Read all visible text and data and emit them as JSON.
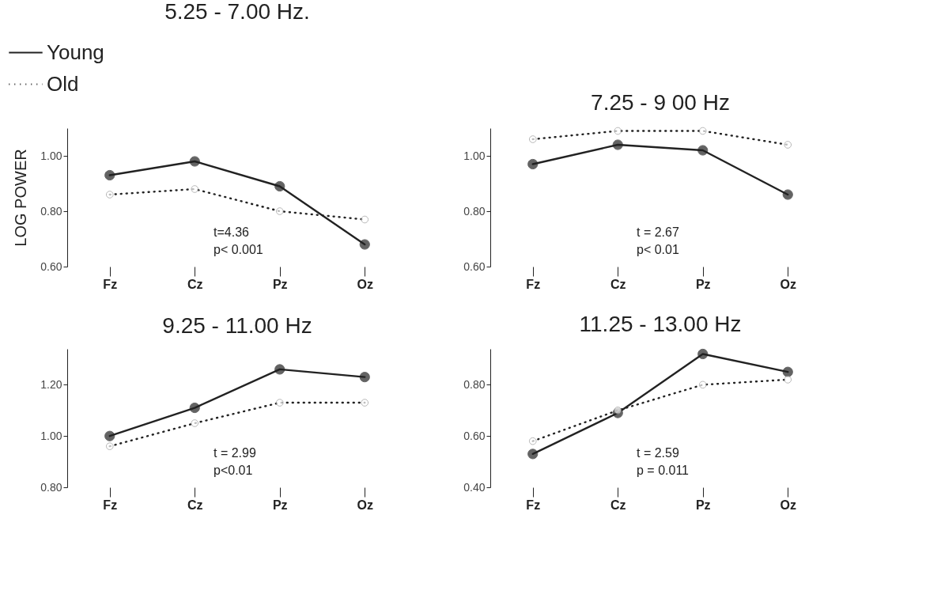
{
  "chart_data": [
    {
      "type": "line",
      "title": "5.25 - 7.00  Hz.",
      "ylabel": "LOG  POWER",
      "categories": [
        "Fz",
        "Cz",
        "Pz",
        "Oz"
      ],
      "legend": "top left",
      "marker": "circle",
      "grid": false,
      "series": [
        {
          "name": "Young",
          "color": "#222222",
          "line_style": "solid",
          "values": [
            0.93,
            0.98,
            0.89,
            0.68
          ]
        },
        {
          "name": "Old",
          "color": "#222222",
          "line_style": "dotted",
          "values": [
            0.86,
            0.88,
            0.8,
            0.77
          ]
        }
      ],
      "ylim": [
        0.6,
        1.1
      ],
      "yticks": [
        {
          "value": 0.6,
          "label": "0.60"
        },
        {
          "value": 0.8,
          "label": "0.80"
        },
        {
          "value": 1.0,
          "label": "1.00"
        }
      ],
      "annotations": [
        "t=4.36",
        "p< 0.001"
      ]
    },
    {
      "type": "line",
      "title": "7.25 - 9 00  Hz",
      "categories": [
        "Fz",
        "Cz",
        "Pz",
        "Oz"
      ],
      "marker": "circle",
      "grid": false,
      "series": [
        {
          "color": "#222222",
          "line_style": "solid",
          "values": [
            0.97,
            1.04,
            1.02,
            0.86
          ]
        },
        {
          "color": "#222222",
          "line_style": "dotted",
          "values": [
            1.06,
            1.09,
            1.09,
            1.04
          ]
        }
      ],
      "ylim": [
        0.6,
        1.1
      ],
      "yticks": [
        {
          "value": 0.6,
          "label": "0.60"
        },
        {
          "value": 0.8,
          "label": "0.80"
        },
        {
          "value": 1.0,
          "label": "1.00"
        }
      ],
      "annotations": [
        "t = 2.67",
        "p< 0.01"
      ]
    },
    {
      "type": "line",
      "title": "9.25 - 11.00  Hz",
      "categories": [
        "Fz",
        "Cz",
        "Pz",
        "Oz"
      ],
      "marker": "circle",
      "grid": false,
      "series": [
        {
          "color": "#222222",
          "line_style": "solid",
          "values": [
            1.0,
            1.11,
            1.26,
            1.23
          ]
        },
        {
          "color": "#222222",
          "line_style": "dotted",
          "values": [
            0.96,
            1.05,
            1.13,
            1.13
          ]
        }
      ],
      "ylim": [
        0.8,
        1.34
      ],
      "yticks": [
        {
          "value": 0.8,
          "label": "0.80"
        },
        {
          "value": 1.0,
          "label": "1.00"
        },
        {
          "value": 1.2,
          "label": "1.20"
        }
      ],
      "annotations": [
        "t = 2.99",
        "p<0.01"
      ]
    },
    {
      "type": "line",
      "title": "11.25 - 13.00  Hz",
      "categories": [
        "Fz",
        "Cz",
        "Pz",
        "Oz"
      ],
      "marker": "circle",
      "grid": false,
      "series": [
        {
          "color": "#222222",
          "line_style": "solid",
          "values": [
            0.53,
            0.69,
            0.92,
            0.85
          ]
        },
        {
          "color": "#222222",
          "line_style": "dotted",
          "values": [
            0.58,
            0.7,
            0.8,
            0.82
          ]
        }
      ],
      "ylim": [
        0.4,
        0.94
      ],
      "yticks": [
        {
          "value": 0.4,
          "label": "0.40"
        },
        {
          "value": 0.6,
          "label": "0.60"
        },
        {
          "value": 0.8,
          "label": "0.80"
        }
      ],
      "annotations": [
        "t = 2.59",
        "p = 0.011"
      ]
    }
  ]
}
